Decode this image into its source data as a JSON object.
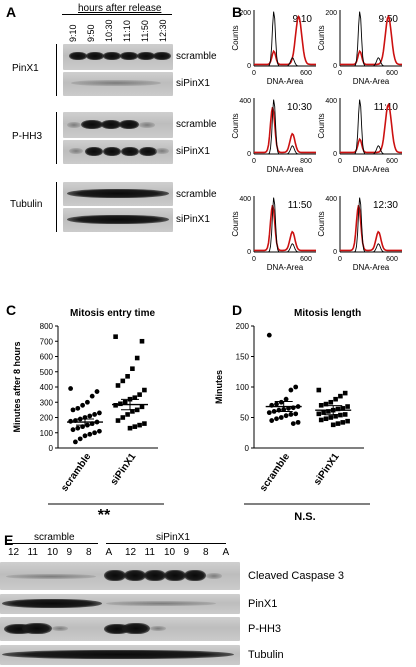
{
  "panels": {
    "A": "A",
    "B": "B",
    "C": "C",
    "D": "D",
    "E": "E"
  },
  "panelA": {
    "header": "hours after release",
    "timepoints": [
      "9:10",
      "9:50",
      "10:30",
      "11:10",
      "11:50",
      "12:30"
    ],
    "groups": [
      "PinX1",
      "P-HH3",
      "Tubulin"
    ],
    "rows": [
      "scramble",
      "siPinX1",
      "scramble",
      "siPinX1",
      "scramble",
      "siPinX1"
    ]
  },
  "panelB": {
    "ylabel": "Counts",
    "xlabel": "DNA-Area",
    "plots": [
      {
        "time": "9:10",
        "ymax": "200",
        "xtick": "600"
      },
      {
        "time": "9:50",
        "ymax": "200",
        "xtick": "600"
      },
      {
        "time": "10:30",
        "ymax": "400",
        "xtick": "800"
      },
      {
        "time": "11:10",
        "ymax": "400",
        "xtick": "600"
      },
      {
        "time": "11:50",
        "ymax": "400",
        "xtick": "600"
      },
      {
        "time": "12:30",
        "ymax": "400",
        "xtick": "600"
      }
    ],
    "colors": {
      "control": "#000000",
      "treated": "#cc1111"
    }
  },
  "chart_data": [
    {
      "type": "scatter",
      "title": "Mitosis entry time",
      "ylabel": "Minutes after 8 hours",
      "ylim": [
        0,
        800
      ],
      "yticks": [
        "0",
        "100",
        "200",
        "300",
        "400",
        "500",
        "600",
        "700",
        "800"
      ],
      "categories": [
        "scramble",
        "siPinX1"
      ],
      "series": [
        {
          "name": "scramble",
          "marker": "circle",
          "mean": 170,
          "values": [
            390,
            370,
            340,
            300,
            280,
            260,
            250,
            230,
            220,
            210,
            200,
            190,
            180,
            175,
            170,
            160,
            150,
            140,
            130,
            120,
            110,
            100,
            90,
            80,
            60,
            40
          ]
        },
        {
          "name": "siPinX1",
          "marker": "square",
          "mean": 285,
          "values": [
            730,
            700,
            590,
            520,
            470,
            440,
            410,
            380,
            350,
            330,
            320,
            300,
            290,
            280,
            270,
            250,
            240,
            220,
            200,
            180,
            160,
            150,
            140,
            130
          ]
        }
      ],
      "significance": "**"
    },
    {
      "type": "scatter",
      "title": "Mitosis length",
      "ylabel": "Minutes",
      "ylim": [
        0,
        200
      ],
      "yticks": [
        "0",
        "50",
        "100",
        "150",
        "200"
      ],
      "categories": [
        "scramble",
        "siPinX1"
      ],
      "series": [
        {
          "name": "scramble",
          "marker": "circle",
          "mean": 68,
          "values": [
            185,
            100,
            95,
            80,
            75,
            72,
            70,
            68,
            66,
            65,
            63,
            62,
            60,
            58,
            56,
            55,
            53,
            50,
            48,
            45,
            42,
            40
          ]
        },
        {
          "name": "siPinX1",
          "marker": "square",
          "mean": 62,
          "values": [
            95,
            90,
            85,
            80,
            75,
            72,
            70,
            68,
            65,
            64,
            62,
            60,
            58,
            56,
            55,
            54,
            52,
            50,
            48,
            46,
            44,
            42,
            40,
            38
          ]
        }
      ],
      "significance": "N.S."
    }
  ],
  "panelE": {
    "group_labels": [
      "scramble",
      "siPinX1"
    ],
    "lanes": [
      "12",
      "11",
      "10",
      "9",
      "8",
      "A",
      "12",
      "11",
      "10",
      "9",
      "8",
      "A"
    ],
    "rows": [
      "Cleaved Caspase 3",
      "PinX1",
      "P-HH3",
      "Tubulin"
    ]
  }
}
